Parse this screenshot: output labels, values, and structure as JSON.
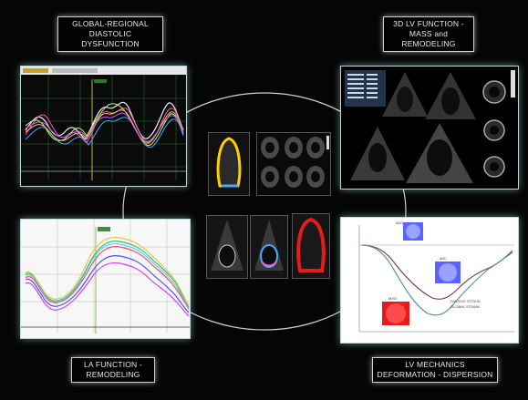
{
  "labels": {
    "top_left": [
      "GLOBAL-REGIONAL",
      "DIASTOLIC",
      "DYSFUNCTION"
    ],
    "top_right": [
      "3D LV FUNCTION -",
      "MASS and",
      "REMODELING"
    ],
    "bottom_left": [
      "LA FUNCTION -",
      "REMODELING"
    ],
    "bottom_right": [
      "LV MECHANICS",
      "DEFORMATION - DISPERSION"
    ]
  },
  "mechanics_chart": {
    "series_labels": [
      "PASSIVE STRAIN",
      "GLOBAL STRAIN"
    ],
    "marker_labels": [
      "AVO",
      "AVC",
      "MVO"
    ]
  },
  "colors": {
    "background": "#050505",
    "panel_glow": "#bfd6d6",
    "strain_line_1": "#7a3b3b",
    "strain_line_2": "#4a8fa8"
  }
}
